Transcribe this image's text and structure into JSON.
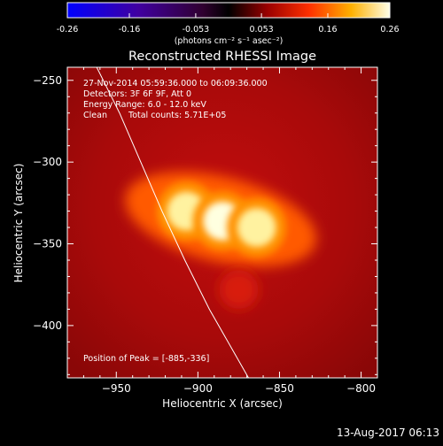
{
  "colorbar": {
    "ticks": [
      "-0.26",
      "-0.16",
      "-0.053",
      "0.053",
      "0.16",
      "0.26"
    ],
    "tick_values": [
      -0.26,
      -0.16,
      -0.053,
      0.053,
      0.16,
      0.26
    ],
    "range": [
      -0.26,
      0.26
    ],
    "unit_label": "(photons cm⁻² s⁻¹ asec⁻²)"
  },
  "chart_data": {
    "type": "heatmap",
    "title": "Reconstructed RHESSI Image",
    "xlabel": "Heliocentric X (arcsec)",
    "ylabel": "Heliocentric Y (arcsec)",
    "xlim": [
      -980,
      -790
    ],
    "ylim": [
      -432,
      -242
    ],
    "x_ticks": [
      -950,
      -900,
      -850,
      -800
    ],
    "x_tick_labels": [
      "−950",
      "−900",
      "−850",
      "−800"
    ],
    "y_ticks": [
      -250,
      -300,
      -350,
      -400
    ],
    "y_tick_labels": [
      "−250",
      "−300",
      "−350",
      "−400"
    ],
    "grid": false,
    "colormap": "black-purple-red-yellow-white",
    "sources": [
      {
        "x": -907,
        "y": -330,
        "peak": 0.23
      },
      {
        "x": -885,
        "y": -336,
        "peak": 0.26
      },
      {
        "x": -864,
        "y": -340,
        "peak": 0.22
      },
      {
        "x": -875,
        "y": -378,
        "peak": 0.06
      }
    ],
    "limb_curve": [
      [
        -962,
        -242
      ],
      [
        -948,
        -270
      ],
      [
        -935,
        -300
      ],
      [
        -922,
        -330
      ],
      [
        -908,
        -360
      ],
      [
        -893,
        -390
      ],
      [
        -877,
        -418
      ],
      [
        -869,
        -432
      ]
    ],
    "annotations": {
      "time": "27-Nov-2014 05:59:36.000 to 06:09:36.000",
      "detectors": "Detectors: 3F 6F 9F, Att 0",
      "energy": "Energy Range: 6.0 - 12.0 keV",
      "method": "Clean",
      "counts": "Total counts: 5.71E+05",
      "peak": "Position of Peak = [-885,-336]"
    }
  },
  "footer": {
    "timestamp": "13-Aug-2017 06:13"
  }
}
